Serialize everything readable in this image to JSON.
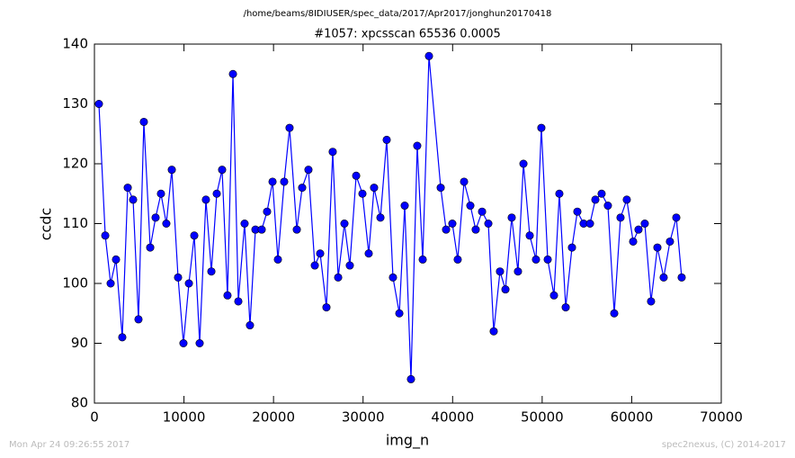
{
  "header": {
    "path": "/home/beams/8IDIUSER/spec_data/2017/Apr2017/jonghun20170418"
  },
  "chart_data": {
    "type": "line",
    "title": "#1057: xpcsscan 65536 0.0005",
    "xlabel": "img_n",
    "ylabel": "ccdc",
    "x": [
      500,
      1210,
      1810,
      2410,
      3110,
      3720,
      4320,
      4920,
      5520,
      6230,
      6830,
      7430,
      8030,
      8640,
      9340,
      9940,
      10550,
      11150,
      11750,
      12450,
      13060,
      13660,
      14260,
      14860,
      15470,
      16070,
      16770,
      17370,
      17980,
      18680,
      19280,
      19890,
      20490,
      21190,
      21790,
      22600,
      23200,
      23900,
      24610,
      25210,
      25910,
      26610,
      27220,
      27920,
      28520,
      29230,
      29930,
      30630,
      31230,
      31940,
      32640,
      33340,
      34050,
      34650,
      35350,
      36050,
      36660,
      37360,
      38670,
      39270,
      39970,
      40570,
      41280,
      41980,
      42580,
      43290,
      43990,
      44590,
      45290,
      45900,
      46600,
      47300,
      47910,
      48610,
      49310,
      49910,
      50620,
      51320,
      51920,
      52630,
      53330,
      53930,
      54630,
      55340,
      55940,
      56640,
      57340,
      58050,
      58750,
      59450,
      60160,
      60760,
      61460,
      62160,
      62870,
      63570,
      64270,
      64980,
      65580
    ],
    "series": [
      {
        "color": "#0000ff",
        "values": [
          130,
          108,
          100,
          104,
          91,
          116,
          114,
          94,
          127,
          106,
          111,
          115,
          110,
          119,
          101,
          90,
          100,
          108,
          90,
          114,
          102,
          115,
          119,
          98,
          135,
          97,
          110,
          93,
          109,
          109,
          112,
          117,
          104,
          117,
          126,
          109,
          116,
          119,
          103,
          105,
          96,
          122,
          101,
          110,
          103,
          118,
          115,
          105,
          116,
          111,
          124,
          101,
          95,
          113,
          84,
          123,
          104,
          138,
          116,
          109,
          110,
          104,
          117,
          113,
          109,
          112,
          110,
          92,
          102,
          99,
          111,
          102,
          120,
          108,
          104,
          126,
          104,
          98,
          115,
          96,
          106,
          112,
          110,
          110,
          114,
          115,
          113,
          95,
          111,
          114,
          107,
          109,
          110,
          97,
          106,
          101,
          107,
          111,
          101
        ]
      }
    ],
    "xlim": [
      0,
      70000
    ],
    "xticks": [
      0,
      10000,
      20000,
      30000,
      40000,
      50000,
      60000,
      70000
    ],
    "ylim": [
      80,
      140
    ],
    "yticks": [
      80,
      90,
      100,
      110,
      120,
      130,
      140
    ]
  },
  "footer": {
    "left": "Mon Apr 24 09:26:55 2017",
    "right": "spec2nexus, (C) 2014-2017"
  }
}
